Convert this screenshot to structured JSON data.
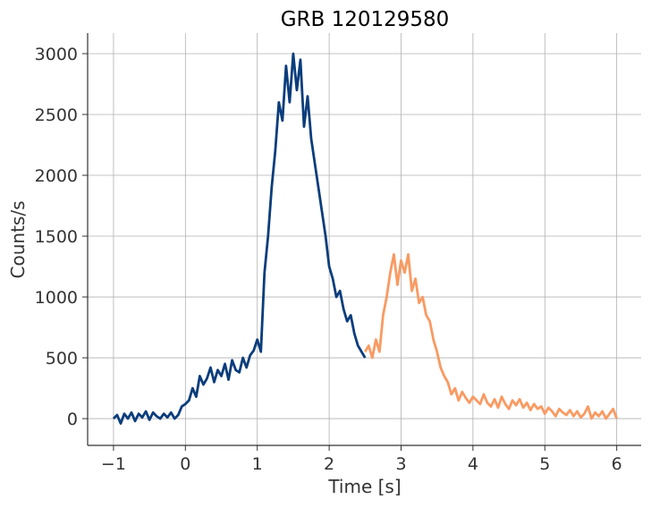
{
  "chart_data": {
    "type": "line",
    "title": "GRB 120129580",
    "x_label": "Time [s]",
    "y_label": "Counts/s",
    "xlim": [
      -1.36,
      6.34
    ],
    "ylim": [
      -220,
      3169
    ],
    "xticks": [
      {
        "value": -1,
        "label": "−1"
      },
      0,
      1,
      2,
      3,
      4,
      5,
      6
    ],
    "yticks": [
      0,
      500,
      1000,
      1500,
      2000,
      2500,
      3000
    ],
    "grid": true,
    "series": [
      {
        "color": "#0b3d7c",
        "x": [
          -1.0,
          -0.95,
          -0.9,
          -0.85,
          -0.8,
          -0.75,
          -0.7,
          -0.65,
          -0.6,
          -0.55,
          -0.5,
          -0.45,
          -0.4,
          -0.35,
          -0.3,
          -0.25,
          -0.2,
          -0.15,
          -0.1,
          -0.05,
          0.0,
          0.05,
          0.1,
          0.15,
          0.2,
          0.25,
          0.3,
          0.35,
          0.4,
          0.45,
          0.5,
          0.55,
          0.6,
          0.65,
          0.7,
          0.75,
          0.8,
          0.85,
          0.9,
          0.95,
          1.0,
          1.05,
          1.1,
          1.15,
          1.2,
          1.25,
          1.3,
          1.35,
          1.4,
          1.45,
          1.5,
          1.55,
          1.6,
          1.65,
          1.7,
          1.75,
          1.8,
          1.85,
          1.9,
          1.95,
          2.0,
          2.05,
          2.1,
          2.15,
          2.2,
          2.25,
          2.3,
          2.35,
          2.4,
          2.45,
          2.5
        ],
        "values": [
          0,
          30,
          -40,
          40,
          0,
          50,
          -20,
          40,
          10,
          60,
          -10,
          50,
          20,
          0,
          40,
          10,
          50,
          0,
          30,
          100,
          120,
          150,
          250,
          180,
          350,
          280,
          330,
          420,
          300,
          400,
          350,
          450,
          320,
          480,
          400,
          380,
          500,
          420,
          520,
          560,
          650,
          550,
          1200,
          1500,
          1900,
          2200,
          2600,
          2450,
          2900,
          2600,
          3000,
          2700,
          2950,
          2400,
          2650,
          2300,
          2100,
          1900,
          1700,
          1500,
          1250,
          1150,
          1000,
          1050,
          900,
          800,
          850,
          700,
          600,
          550,
          500
        ]
      },
      {
        "color": "#f99a62",
        "x": [
          2.5,
          2.55,
          2.6,
          2.65,
          2.7,
          2.75,
          2.8,
          2.85,
          2.9,
          2.95,
          3.0,
          3.05,
          3.1,
          3.15,
          3.2,
          3.25,
          3.3,
          3.35,
          3.4,
          3.45,
          3.5,
          3.55,
          3.6,
          3.65,
          3.7,
          3.75,
          3.8,
          3.85,
          3.9,
          3.95,
          4.0,
          4.05,
          4.1,
          4.15,
          4.2,
          4.25,
          4.3,
          4.35,
          4.4,
          4.45,
          4.5,
          4.55,
          4.6,
          4.65,
          4.7,
          4.75,
          4.8,
          4.85,
          4.9,
          4.95,
          5.0,
          5.05,
          5.1,
          5.15,
          5.2,
          5.25,
          5.3,
          5.35,
          5.4,
          5.45,
          5.5,
          5.55,
          5.6,
          5.65,
          5.7,
          5.75,
          5.8,
          5.85,
          5.9,
          5.95,
          6.0
        ],
        "values": [
          550,
          600,
          500,
          650,
          550,
          850,
          1000,
          1200,
          1350,
          1100,
          1300,
          1200,
          1350,
          1050,
          1150,
          950,
          1000,
          850,
          800,
          650,
          550,
          420,
          350,
          300,
          200,
          250,
          150,
          220,
          170,
          130,
          180,
          150,
          120,
          200,
          130,
          100,
          160,
          90,
          180,
          120,
          80,
          150,
          110,
          160,
          90,
          130,
          70,
          120,
          80,
          100,
          40,
          90,
          60,
          20,
          80,
          50,
          30,
          70,
          20,
          60,
          10,
          40,
          100,
          0,
          50,
          20,
          60,
          0,
          40,
          80,
          0
        ]
      }
    ]
  }
}
